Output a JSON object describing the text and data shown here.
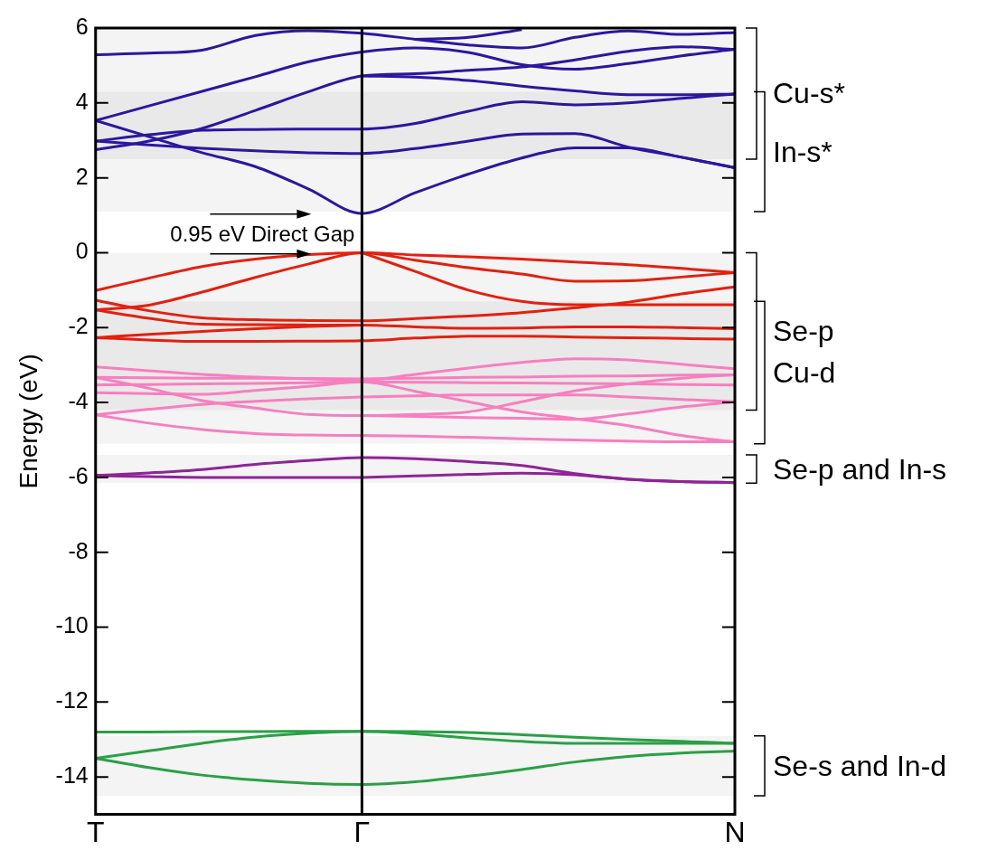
{
  "chart_data": {
    "type": "line",
    "ylabel": "Energy (eV)",
    "categories": [
      "T",
      null,
      null,
      null,
      null,
      "Γ",
      null,
      null,
      null,
      null,
      null,
      null,
      "N"
    ],
    "ylim": [
      -15,
      6
    ],
    "yticks": [
      -14,
      -12,
      -10,
      -8,
      -6,
      -4,
      -2,
      0,
      2,
      4,
      6
    ],
    "ref_lines": [
      {
        "axis": "x",
        "value": "Γ",
        "label": null,
        "color": "#000000"
      }
    ],
    "bands": [
      {
        "axis": "y",
        "from": 6,
        "to": 2.5,
        "label": "Cu-s*"
      },
      {
        "axis": "y",
        "from": 4.3,
        "to": 1.1,
        "label": "In-s*"
      },
      {
        "axis": "y",
        "from": 0,
        "to": -4.2,
        "label": "Se-p"
      },
      {
        "axis": "y",
        "from": -1.3,
        "to": -5.1,
        "label": "Cu-d"
      },
      {
        "axis": "y",
        "from": -5.4,
        "to": -6.15,
        "label": "Se-p and In-s"
      },
      {
        "axis": "y",
        "from": -12.9,
        "to": -14.5,
        "label": "Se-s and In-d"
      }
    ],
    "annotations": [
      {
        "text": "0.95 eV Direct Gap",
        "x": "Γ",
        "y": 0.5
      }
    ],
    "series": [
      {
        "color": "#2b179f",
        "values": [
          5.29,
          5.33,
          5.41,
          5.8,
          5.93,
          5.86,
          5.7,
          5.55,
          5.47,
          5.75,
          5.92,
          5.83,
          5.88
        ]
      },
      {
        "color": "#2b179f",
        "values": [
          null,
          null,
          null,
          null,
          null,
          null,
          5.7,
          5.75,
          5.96,
          null,
          null,
          null,
          null
        ]
      },
      {
        "color": "#2b179f",
        "values": [
          3.53,
          3.92,
          4.31,
          4.7,
          5.1,
          5.36,
          5.47,
          5.35,
          5.02,
          4.9,
          5.05,
          5.26,
          5.43
        ]
      },
      {
        "color": "#2b179f",
        "values": [
          2.75,
          2.98,
          3.32,
          3.8,
          4.3,
          4.72,
          4.78,
          4.87,
          4.96,
          5.15,
          5.38,
          5.5,
          5.43
        ]
      },
      {
        "color": "#2b179f",
        "values": [
          null,
          null,
          null,
          null,
          null,
          4.72,
          4.69,
          4.6,
          4.45,
          4.32,
          4.22,
          4.22,
          4.24
        ]
      },
      {
        "color": "#2b179f",
        "values": [
          2.98,
          3.15,
          3.27,
          3.29,
          3.3,
          3.3,
          3.45,
          3.78,
          4.03,
          3.95,
          4.0,
          4.12,
          4.24
        ]
      },
      {
        "color": "#2b179f",
        "values": [
          2.98,
          2.88,
          2.79,
          2.72,
          2.67,
          2.65,
          2.78,
          2.98,
          3.17,
          3.18,
          2.82,
          2.55,
          2.27
        ]
      },
      {
        "color": "#2b179f",
        "values": [
          3.53,
          3.1,
          2.67,
          2.3,
          1.7,
          1.05,
          1.6,
          2.1,
          2.53,
          2.8,
          2.8,
          2.55,
          2.27
        ]
      },
      {
        "color": "#e3200f",
        "values": [
          -1.01,
          -0.68,
          -0.37,
          -0.17,
          -0.05,
          0,
          -0.06,
          -0.11,
          -0.17,
          -0.25,
          -0.32,
          -0.42,
          -0.53
        ]
      },
      {
        "color": "#e3200f",
        "values": [
          -1.53,
          -1.4,
          -1.05,
          -0.66,
          -0.3,
          0,
          -0.2,
          -0.4,
          -0.57,
          -0.76,
          -0.75,
          -0.65,
          -0.53
        ]
      },
      {
        "color": "#e3200f",
        "values": [
          -1.27,
          -1.55,
          -1.74,
          -1.79,
          -1.81,
          -1.82,
          -1.76,
          -1.69,
          -1.6,
          -1.47,
          -1.32,
          -1.1,
          -0.91
        ]
      },
      {
        "color": "#e3200f",
        "values": [
          -1.53,
          -1.75,
          -1.91,
          -1.92,
          -1.93,
          -1.93,
          -1.98,
          -2.02,
          -2.01,
          -1.98,
          -1.98,
          -2.0,
          -2.03
        ]
      },
      {
        "color": "#e3200f",
        "values": [
          -2.27,
          -2.18,
          -2.1,
          -2.03,
          -1.97,
          -1.93,
          null,
          null,
          null,
          null,
          null,
          null,
          null
        ]
      },
      {
        "color": "#e3200f",
        "values": [
          -2.27,
          -2.33,
          -2.37,
          -2.37,
          -2.36,
          -2.35,
          -2.28,
          -2.23,
          -2.23,
          -2.25,
          -2.27,
          -2.29,
          -2.31
        ]
      },
      {
        "color": "#e3200f",
        "values": [
          null,
          null,
          null,
          null,
          null,
          0,
          -0.5,
          -1.0,
          -1.3,
          -1.39,
          -1.39,
          -1.39,
          -1.39
        ]
      },
      {
        "color": "#f77fbf",
        "values": [
          -3.05,
          -3.15,
          -3.25,
          -3.32,
          -3.37,
          -3.4,
          -3.25,
          -3.08,
          -2.93,
          -2.83,
          -2.86,
          -2.98,
          -3.1
        ]
      },
      {
        "color": "#f77fbf",
        "values": [
          -3.33,
          -3.34,
          -3.35,
          -3.35,
          -3.36,
          -3.37,
          null,
          null,
          null,
          null,
          null,
          null,
          null
        ]
      },
      {
        "color": "#f77fbf",
        "values": [
          null,
          null,
          null,
          null,
          null,
          -3.37,
          -3.35,
          -3.33,
          -3.32,
          -3.3,
          -3.29,
          -3.27,
          -3.26
        ]
      },
      {
        "color": "#f77fbf",
        "values": [
          -3.53,
          -3.52,
          -3.5,
          -3.49,
          -3.47,
          -3.45,
          -3.46,
          -3.47,
          -3.48,
          -3.49,
          -3.5,
          -3.52,
          -3.53
        ]
      },
      {
        "color": "#f77fbf",
        "values": [
          -3.33,
          -3.62,
          -3.95,
          -4.15,
          -4.32,
          -4.35,
          -4.32,
          -4.25,
          -3.98,
          -3.69,
          -3.5,
          -3.35,
          -3.26
        ]
      },
      {
        "color": "#f77fbf",
        "values": [
          -3.74,
          -3.76,
          -3.78,
          -3.68,
          -3.57,
          -3.45,
          -3.7,
          -3.98,
          -4.25,
          -4.43,
          -4.62,
          -4.88,
          -5.05
        ]
      },
      {
        "color": "#f77fbf",
        "values": [
          -4.33,
          -4.18,
          -4.05,
          -3.97,
          -3.9,
          -3.85,
          -3.82,
          -3.8,
          -3.8,
          -3.8,
          -3.85,
          -3.92,
          -3.98
        ]
      },
      {
        "color": "#f77fbf",
        "values": [
          -4.33,
          -4.55,
          -4.72,
          -4.83,
          -4.87,
          -4.88,
          -4.9,
          -4.93,
          -4.97,
          -5.0,
          -5.03,
          -5.05,
          -5.05
        ]
      },
      {
        "color": "#f77fbf",
        "values": [
          null,
          null,
          null,
          null,
          null,
          -4.35,
          -4.37,
          -4.4,
          -4.42,
          -4.45,
          -4.3,
          -4.12,
          -3.98
        ]
      },
      {
        "color": "#8e2496",
        "values": [
          -5.95,
          -5.88,
          -5.79,
          -5.65,
          -5.55,
          -5.47,
          -5.5,
          -5.58,
          -5.68,
          -5.9,
          -6.05,
          -6.11,
          -6.14
        ]
      },
      {
        "color": "#8e2496",
        "values": [
          -5.95,
          -5.98,
          -6.0,
          -6.0,
          -6.0,
          -6.0,
          null,
          null,
          null,
          null,
          null,
          null,
          null
        ]
      },
      {
        "color": "#8e2496",
        "values": [
          null,
          null,
          null,
          null,
          null,
          -6.0,
          -5.96,
          -5.92,
          -5.89,
          -5.93,
          -6.05,
          -6.11,
          -6.14
        ]
      },
      {
        "color": "#2aa046",
        "values": [
          -12.8,
          -12.8,
          -12.79,
          -12.79,
          -12.78,
          -12.78,
          -12.79,
          -12.81,
          -12.87,
          -12.94,
          -13.0,
          -13.05,
          -13.1
        ]
      },
      {
        "color": "#2aa046",
        "values": [
          -13.5,
          -13.3,
          -13.1,
          -12.93,
          -12.83,
          -12.78,
          -12.85,
          -12.96,
          -13.05,
          -13.1,
          -13.1,
          -13.1,
          -13.1
        ]
      },
      {
        "color": "#2aa046",
        "values": [
          -13.5,
          -13.75,
          -13.95,
          -14.08,
          -14.17,
          -14.2,
          -14.13,
          -13.98,
          -13.8,
          -13.6,
          -13.45,
          -13.36,
          -13.31
        ]
      }
    ]
  }
}
